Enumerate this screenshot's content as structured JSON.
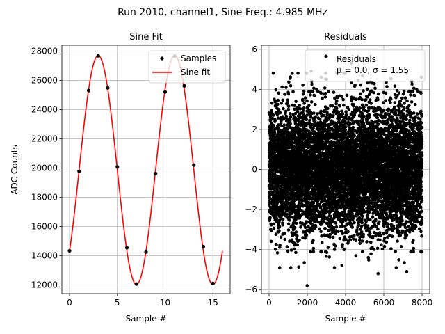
{
  "suptitle": "Run 2010, channel1, Sine Freq.: 4.985 MHz",
  "colors": {
    "samples": "#000000",
    "fit": "#ff0000",
    "residuals": "#000000",
    "grid": "#b0b0b0"
  },
  "chart_data": [
    {
      "type": "scatter",
      "title": "Sine Fit",
      "xlabel": "Sample #",
      "ylabel": "ADC Counts",
      "xlim": [
        -0.8,
        16.8
      ],
      "ylim": [
        11400,
        28400
      ],
      "xticks": [
        0,
        5,
        10,
        15
      ],
      "yticks": [
        12000,
        14000,
        16000,
        18000,
        20000,
        22000,
        24000,
        26000,
        28000
      ],
      "grid": true,
      "legend_position": "top-right",
      "series": [
        {
          "name": "Samples",
          "kind": "scatter",
          "x": [
            0,
            1,
            2,
            3,
            4,
            5,
            6,
            7,
            8,
            9,
            10,
            11,
            12,
            13,
            14,
            15
          ],
          "y": [
            14330,
            19780,
            25300,
            27680,
            25480,
            20070,
            14540,
            12060,
            14250,
            19620,
            25200,
            27660,
            25620,
            20200,
            14620,
            12100
          ]
        },
        {
          "name": "Sine fit",
          "kind": "line",
          "model": {
            "offset": 19860,
            "amplitude": 7830,
            "period": 8.0,
            "peak_x": 3.0
          },
          "x_range": [
            0,
            16
          ]
        }
      ]
    },
    {
      "type": "scatter",
      "title": "Residuals",
      "xlabel": "Sample #",
      "ylabel": "",
      "xlim": [
        -400,
        8400
      ],
      "ylim": [
        -6.2,
        6.2
      ],
      "xticks": [
        0,
        2000,
        4000,
        6000,
        8000
      ],
      "yticks": [
        -6,
        -4,
        -2,
        0,
        2,
        4,
        6
      ],
      "grid": true,
      "legend_position": "top-right",
      "legend_entry": "Residuals",
      "stats_label": "μ = 0.0, σ = 1.55",
      "n_points": 8000,
      "mean": 0.0,
      "std": 1.55,
      "x_range": [
        0,
        8000
      ],
      "notable_points": [
        {
          "x": 1990,
          "y": -5.8
        },
        {
          "x": 2200,
          "y": 4.9
        },
        {
          "x": 3700,
          "y": 5.0
        },
        {
          "x": 4300,
          "y": 5.3
        },
        {
          "x": 5700,
          "y": -5.2
        },
        {
          "x": 7200,
          "y": -5.1
        },
        {
          "x": 1100,
          "y": 4.55
        }
      ]
    }
  ]
}
